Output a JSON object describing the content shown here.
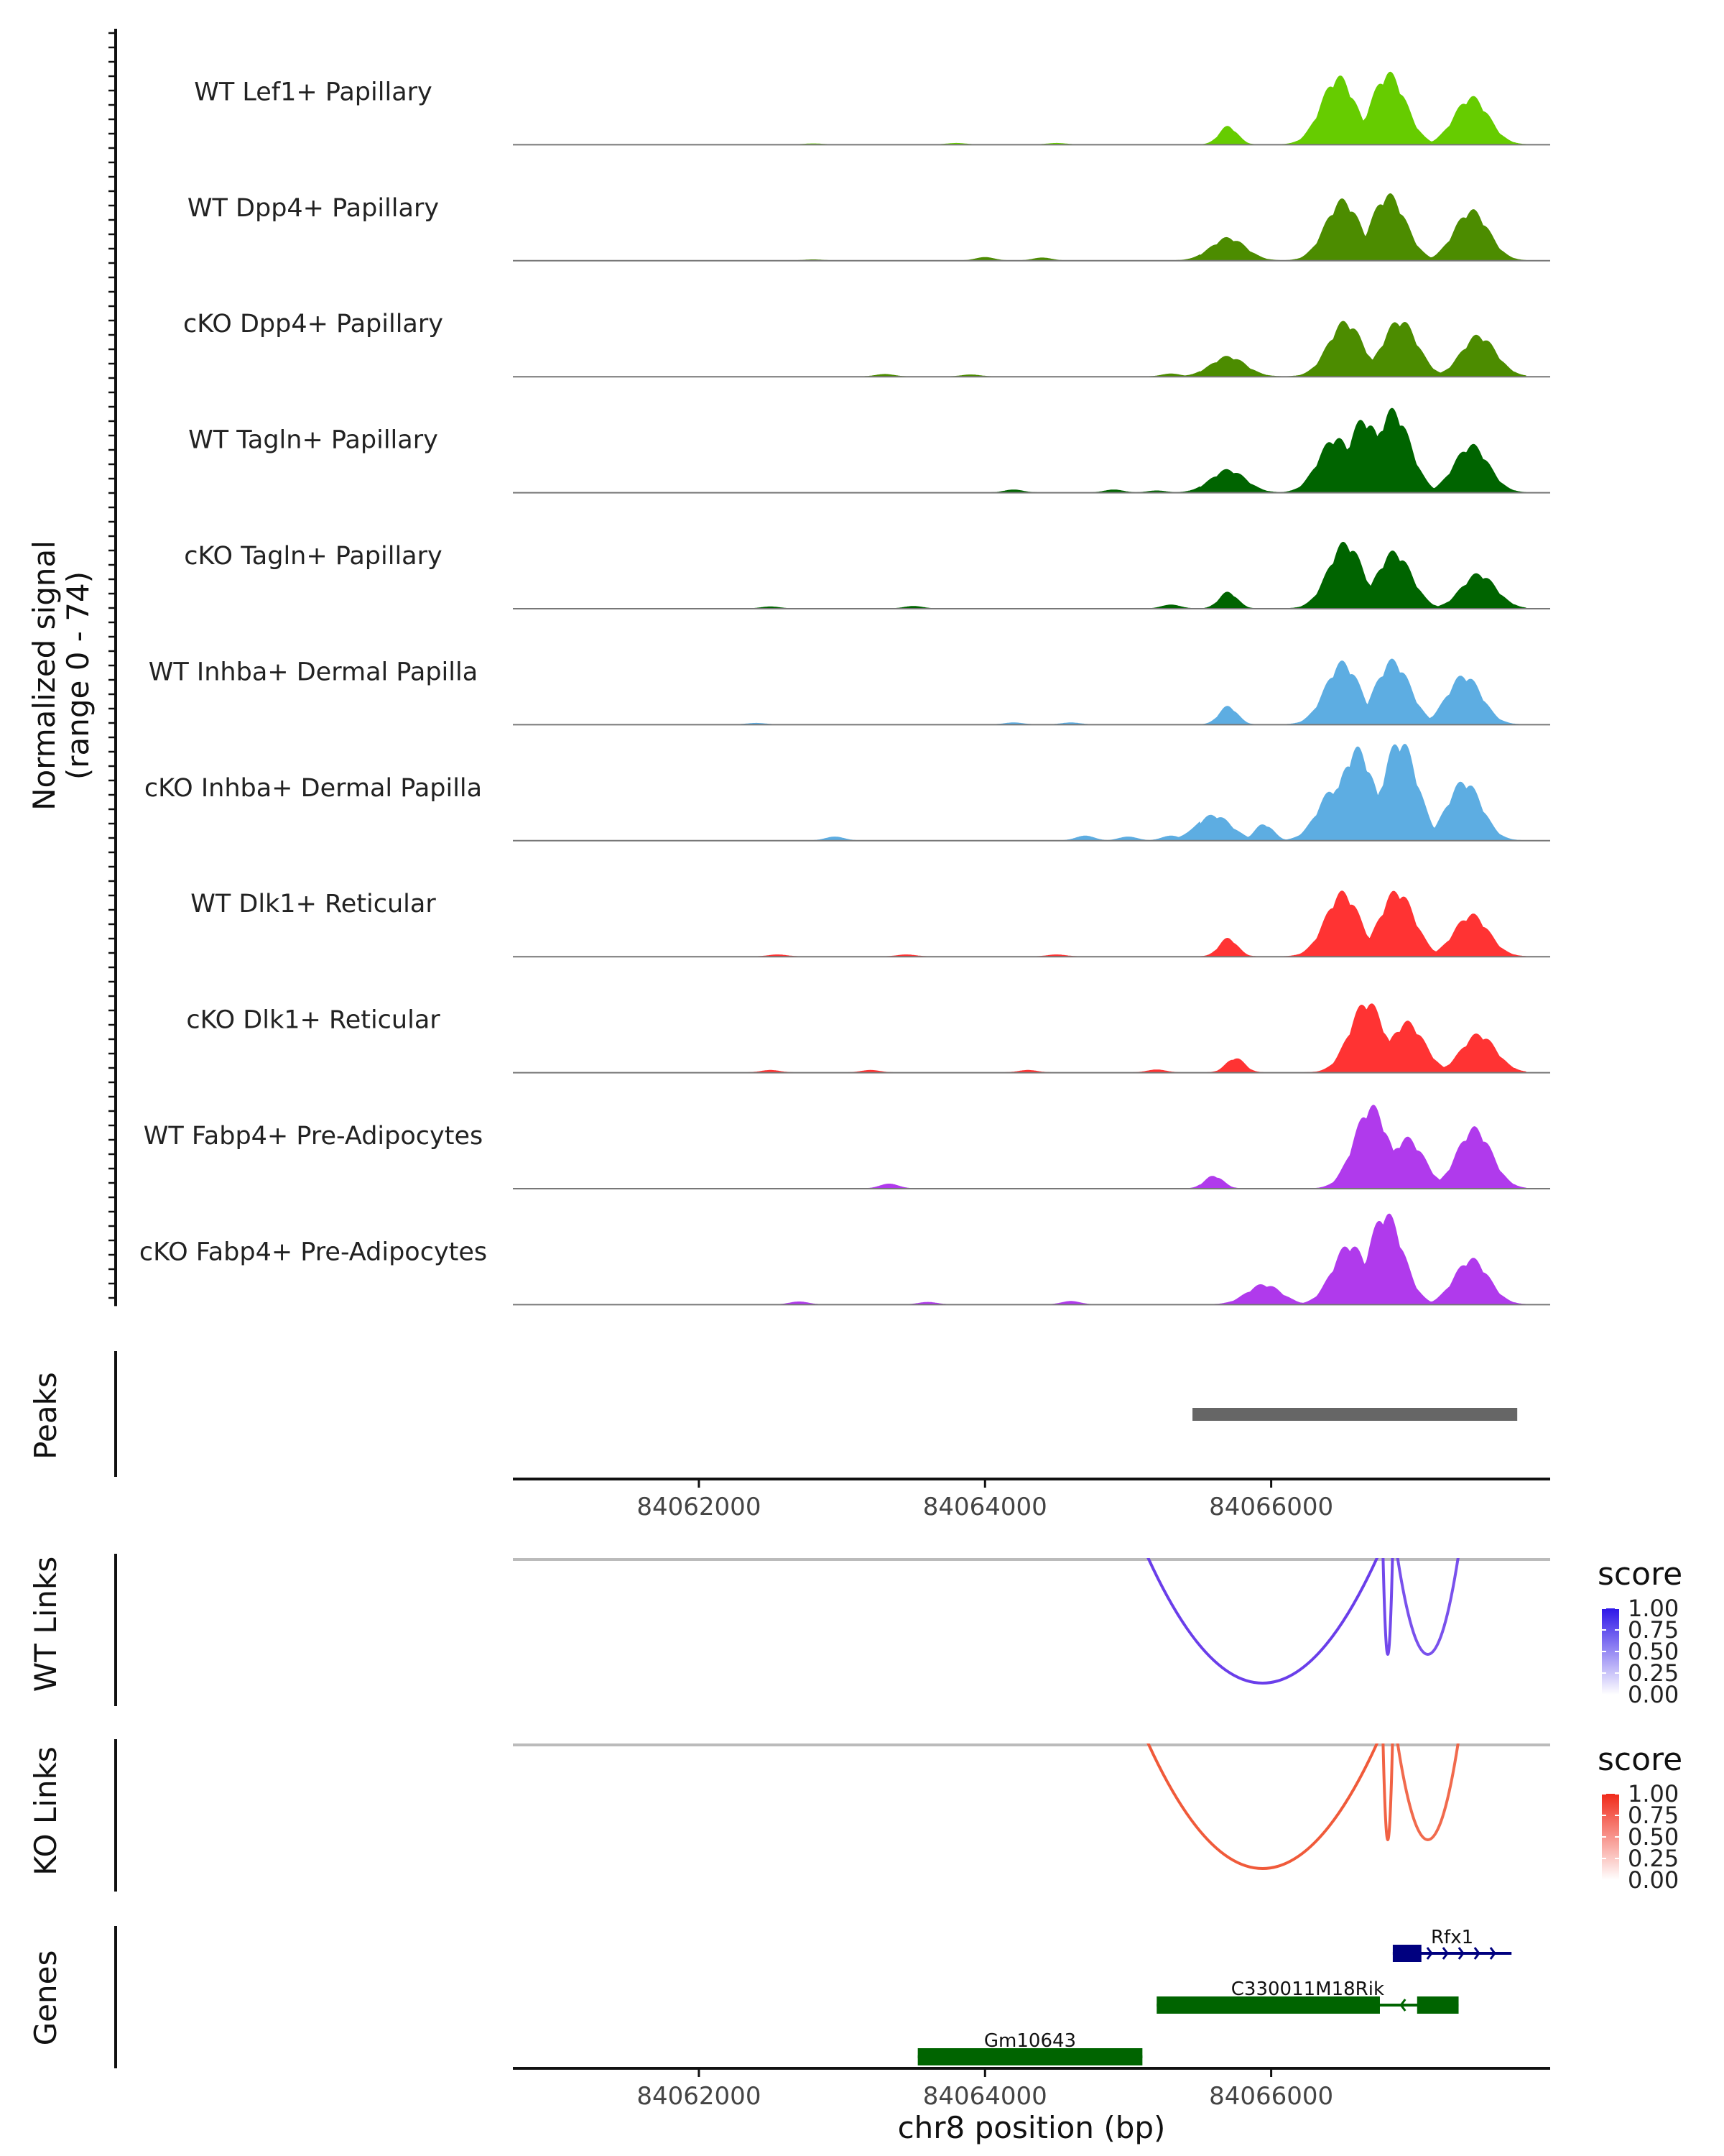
{
  "chart_data": {
    "type": "area",
    "title": "",
    "coverage": {
      "ylabel_line1": "Normalized signal",
      "ylabel_line2": "(range 0 - 74)",
      "yrange": [
        0,
        74
      ],
      "tracks": [
        {
          "name": "WT Lef1+ Papillary",
          "color": "#66CC00",
          "peaks": [
            [
              84066470,
              74
            ],
            [
              84066820,
              78
            ],
            [
              84067400,
              52
            ],
            [
              84065700,
              20
            ],
            [
              84062800,
              1
            ],
            [
              84063800,
              1.5
            ],
            [
              84064500,
              1.5
            ]
          ]
        },
        {
          "name": "WT Dpp4+ Papillary",
          "color": "#4C8C00",
          "peaks": [
            [
              84066500,
              66
            ],
            [
              84066820,
              72
            ],
            [
              84067400,
              55
            ],
            [
              84065700,
              25
            ],
            [
              84064000,
              3.5
            ],
            [
              84064400,
              3
            ],
            [
              84062800,
              1
            ]
          ]
        },
        {
          "name": "cKO Dpp4+ Papillary",
          "color": "#4C8C00",
          "peaks": [
            [
              84066520,
              60
            ],
            [
              84066900,
              62
            ],
            [
              84067450,
              45
            ],
            [
              84065700,
              22
            ],
            [
              84063300,
              2.5
            ],
            [
              84063900,
              2
            ],
            [
              84065300,
              3
            ]
          ]
        },
        {
          "name": "WT Tagln+ Papillary",
          "color": "#006400",
          "peaks": [
            [
              84066450,
              60
            ],
            [
              84066650,
              80
            ],
            [
              84066850,
              90
            ],
            [
              84067400,
              52
            ],
            [
              84065700,
              25
            ],
            [
              84064200,
              3
            ],
            [
              84064900,
              3
            ],
            [
              84065200,
              2
            ]
          ]
        },
        {
          "name": "cKO Tagln+ Papillary",
          "color": "#006400",
          "peaks": [
            [
              84066520,
              72
            ],
            [
              84066860,
              62
            ],
            [
              84067450,
              38
            ],
            [
              84065700,
              18
            ],
            [
              84062500,
              2
            ],
            [
              84063500,
              2.5
            ],
            [
              84065300,
              4
            ]
          ]
        },
        {
          "name": "WT Inhba+ Dermal Papilla",
          "color": "#5DADE2",
          "peaks": [
            [
              84066500,
              68
            ],
            [
              84066850,
              70
            ],
            [
              84067350,
              54
            ],
            [
              84065700,
              20
            ],
            [
              84062400,
              1.5
            ],
            [
              84064200,
              2
            ],
            [
              84064600,
              2
            ]
          ]
        },
        {
          "name": "cKO Inhba+ Dermal Papilla",
          "color": "#5DADE2",
          "peaks": [
            [
              84066450,
              58
            ],
            [
              84066600,
              100
            ],
            [
              84066900,
              110
            ],
            [
              84067350,
              65
            ],
            [
              84065600,
              28
            ],
            [
              84065950,
              18
            ],
            [
              84062950,
              4
            ],
            [
              84064700,
              5
            ],
            [
              84065000,
              4
            ],
            [
              84065300,
              5
            ]
          ]
        },
        {
          "name": "WT Dlk1+ Reticular",
          "color": "#FF3333",
          "peaks": [
            [
              84066500,
              70
            ],
            [
              84066880,
              72
            ],
            [
              84067400,
              46
            ],
            [
              84065700,
              20
            ],
            [
              84062550,
              2
            ],
            [
              84063450,
              2
            ],
            [
              84064500,
              2
            ]
          ]
        },
        {
          "name": "cKO Dlk1+ Reticular",
          "color": "#FF3333",
          "peaks": [
            [
              84066670,
              78
            ],
            [
              84066950,
              55
            ],
            [
              84067450,
              42
            ],
            [
              84065750,
              16
            ],
            [
              84062500,
              2.5
            ],
            [
              84063200,
              2.5
            ],
            [
              84064300,
              2.5
            ],
            [
              84065200,
              3
            ]
          ]
        },
        {
          "name": "WT Fabp4+ Pre-Adipocytes",
          "color": "#B03AEC",
          "peaks": [
            [
              84066700,
              90
            ],
            [
              84066950,
              55
            ],
            [
              84067420,
              66
            ],
            [
              84065600,
              14
            ],
            [
              84063330,
              5
            ]
          ]
        },
        {
          "name": "cKO Fabp4+ Pre-Adipocytes",
          "color": "#B03AEC",
          "peaks": [
            [
              84066550,
              66
            ],
            [
              84066800,
              100
            ],
            [
              84067400,
              50
            ],
            [
              84065950,
              22
            ],
            [
              84062700,
              3
            ],
            [
              84063600,
              2.5
            ],
            [
              84064600,
              3.5
            ]
          ]
        }
      ]
    },
    "peaks_track": {
      "label": "Peaks",
      "color": "#666666",
      "regions": [
        [
          84065450,
          84067720
        ]
      ]
    },
    "position_axis": {
      "label": "chr8 position (bp)",
      "range": [
        84060700,
        84067950
      ],
      "ticks": [
        "84062000",
        "84064000",
        "84066000"
      ],
      "tick_values": [
        84062000,
        84064000,
        84066000
      ]
    },
    "wt_links": {
      "label": "WT Links",
      "legend_title": "score",
      "color": "#6A3EEA",
      "legend_max_color": "#2E16E8",
      "legend_ticks": [
        "1.00",
        "0.75",
        "0.50",
        "0.25",
        "0.00"
      ],
      "arcs": [
        [
          84065100,
          84066780,
          1.0
        ],
        [
          84066780,
          84066850,
          0.95
        ],
        [
          84066870,
          84067320,
          0.9
        ]
      ]
    },
    "ko_links": {
      "label": "KO Links",
      "legend_title": "score",
      "color": "#F05A3A",
      "legend_max_color": "#F02A1A",
      "legend_ticks": [
        "1.00",
        "0.75",
        "0.50",
        "0.25",
        "0.00"
      ],
      "arcs": [
        [
          84065100,
          84066780,
          1.0
        ],
        [
          84066780,
          84066850,
          0.95
        ],
        [
          84066870,
          84067320,
          0.9
        ]
      ]
    },
    "genes": {
      "label": "Genes",
      "items": [
        {
          "name": "Rfx1",
          "color": "#00007F",
          "row": 0,
          "start": 84066850,
          "end": 84067680,
          "strand": "+",
          "exons": [
            [
              84066850,
              84067050
            ]
          ]
        },
        {
          "name": "C330011M18Rik",
          "color": "#006400",
          "row": 1,
          "start": 84065200,
          "end": 84067310,
          "strand": "-",
          "exons": [
            [
              84065200,
              84066760
            ],
            [
              84067020,
              84067310
            ]
          ]
        },
        {
          "name": "Gm10643",
          "color": "#006400",
          "row": 2,
          "start": 84063530,
          "end": 84065100,
          "strand": "+",
          "exons": [
            [
              84063530,
              84065100
            ]
          ]
        }
      ]
    }
  }
}
